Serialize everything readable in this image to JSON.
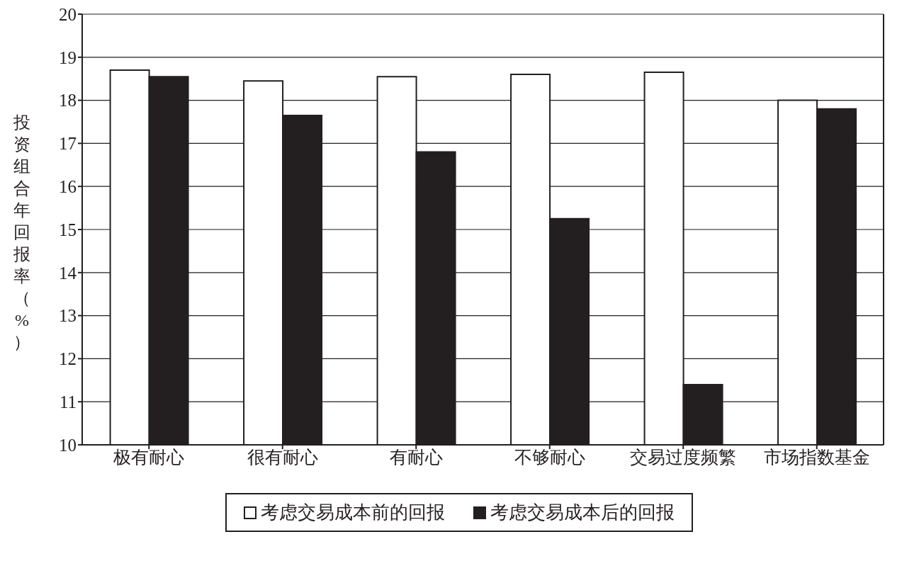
{
  "chart_data": {
    "type": "bar",
    "ylabel": "投资组合年回报率（%）",
    "categories": [
      "极有耐心",
      "很有耐心",
      "有耐心",
      "不够耐心",
      "交易过度频繁",
      "市场指数基金"
    ],
    "series": [
      {
        "name": "考虑交易成本前的回报",
        "color": "#ffffff",
        "values": [
          18.7,
          18.45,
          18.55,
          18.6,
          18.65,
          18.0
        ]
      },
      {
        "name": "考虑交易成本后的回报",
        "color": "#231f20",
        "values": [
          18.55,
          17.65,
          16.8,
          15.25,
          11.4,
          17.8
        ]
      }
    ],
    "ylim": [
      10,
      20
    ],
    "yticks": [
      10,
      11,
      12,
      13,
      14,
      15,
      16,
      17,
      18,
      19,
      20
    ],
    "grid": "y",
    "legend": "bottom"
  }
}
